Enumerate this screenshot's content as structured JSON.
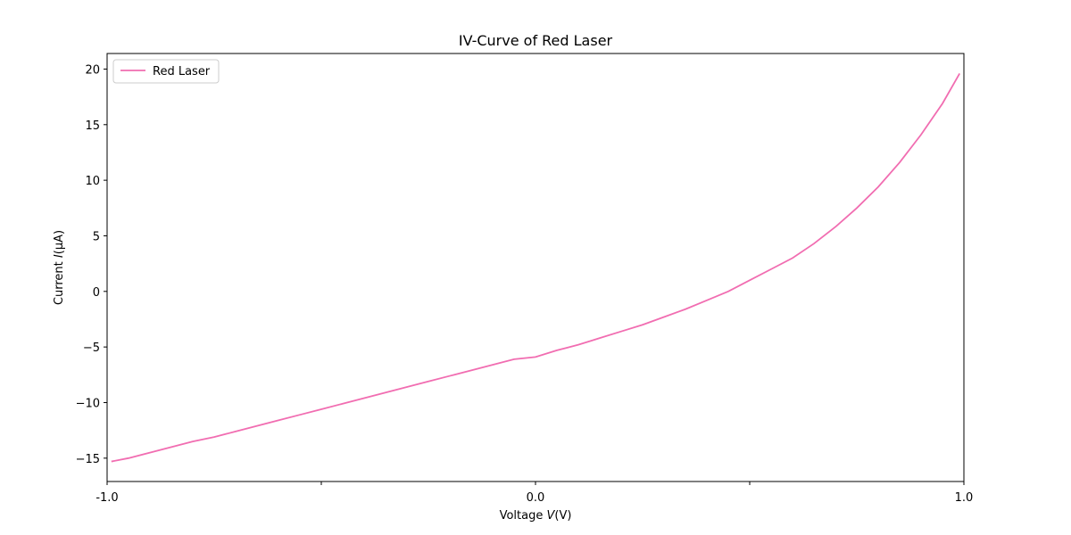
{
  "chart_data": {
    "type": "line",
    "title": "IV-Curve of Red Laser",
    "xlabel": {
      "prefix": "Voltage ",
      "var": "V",
      "suffix": "(V)"
    },
    "ylabel": {
      "prefix": "Current ",
      "var": "I",
      "suffix": "(μA)"
    },
    "xlim": [
      -1.0,
      1.0
    ],
    "ylim": [
      -17.1,
      21.4
    ],
    "x_ticks": [
      {
        "value": -1.0,
        "label": "-1.0"
      },
      {
        "value": -0.5,
        "label": ""
      },
      {
        "value": 0.0,
        "label": "0.0"
      },
      {
        "value": 0.5,
        "label": ""
      },
      {
        "value": 1.0,
        "label": "1.0"
      }
    ],
    "y_ticks": [
      {
        "value": -15,
        "label": "−15"
      },
      {
        "value": -10,
        "label": "−10"
      },
      {
        "value": -5,
        "label": "−5"
      },
      {
        "value": 0,
        "label": "0"
      },
      {
        "value": 5,
        "label": "5"
      },
      {
        "value": 10,
        "label": "10"
      },
      {
        "value": 15,
        "label": "15"
      },
      {
        "value": 20,
        "label": "20"
      }
    ],
    "grid": false,
    "legend_position": "top-left",
    "series": [
      {
        "name": "Red Laser",
        "color": "#f16db1",
        "x": [
          -0.99,
          -0.95,
          -0.9,
          -0.85,
          -0.8,
          -0.75,
          -0.7,
          -0.65,
          -0.6,
          -0.55,
          -0.5,
          -0.45,
          -0.4,
          -0.35,
          -0.3,
          -0.25,
          -0.2,
          -0.15,
          -0.1,
          -0.05,
          0.0,
          0.05,
          0.1,
          0.15,
          0.2,
          0.25,
          0.3,
          0.35,
          0.4,
          0.45,
          0.5,
          0.55,
          0.6,
          0.65,
          0.7,
          0.75,
          0.8,
          0.85,
          0.9,
          0.95,
          0.99
        ],
        "y": [
          -15.3,
          -15.0,
          -14.5,
          -14.0,
          -13.5,
          -13.1,
          -12.6,
          -12.1,
          -11.6,
          -11.1,
          -10.6,
          -10.1,
          -9.6,
          -9.1,
          -8.6,
          -8.1,
          -7.6,
          -7.1,
          -6.6,
          -6.1,
          -5.9,
          -5.3,
          -4.8,
          -4.2,
          -3.6,
          -3.0,
          -2.3,
          -1.6,
          -0.8,
          0.0,
          1.0,
          2.0,
          3.0,
          4.3,
          5.8,
          7.5,
          9.4,
          11.6,
          14.1,
          16.9,
          19.6
        ]
      }
    ]
  }
}
